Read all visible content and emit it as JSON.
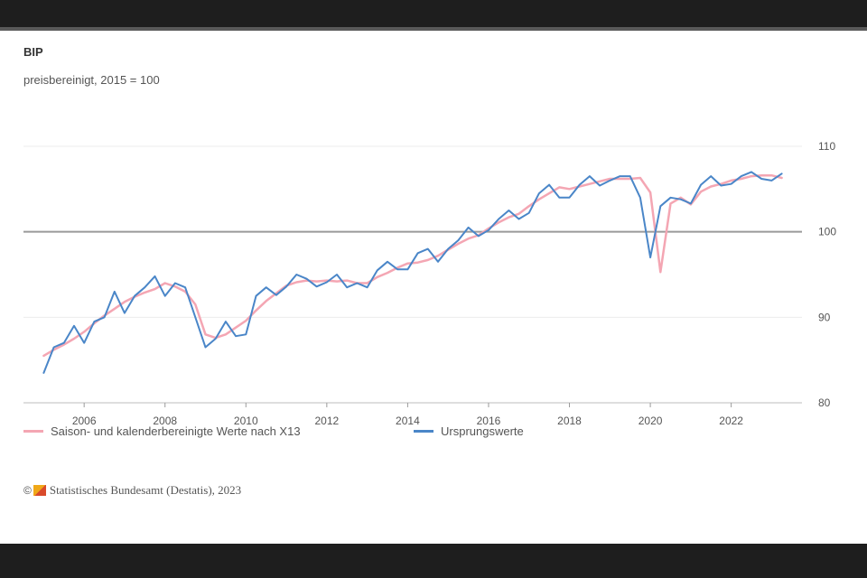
{
  "chart_data": {
    "type": "line",
    "title": "BIP",
    "subtitle": "preisbereinigt, 2015 = 100",
    "ylim": [
      80,
      110
    ],
    "yticks": [
      80,
      90,
      100,
      110
    ],
    "xlim": [
      2004.5,
      2023.75
    ],
    "xticks": [
      2006,
      2008,
      2010,
      2012,
      2014,
      2016,
      2018,
      2020,
      2022
    ],
    "grid": true,
    "reference_line": 100,
    "legend_position": "bottom-left",
    "series": [
      {
        "name": "Saison- und kalenderbereinigte Werte nach X13",
        "color": "#f4a6b3",
        "x": [
          2005.0,
          2005.25,
          2005.5,
          2005.75,
          2006.0,
          2006.25,
          2006.5,
          2006.75,
          2007.0,
          2007.25,
          2007.5,
          2007.75,
          2008.0,
          2008.25,
          2008.5,
          2008.75,
          2009.0,
          2009.25,
          2009.5,
          2009.75,
          2010.0,
          2010.25,
          2010.5,
          2010.75,
          2011.0,
          2011.25,
          2011.5,
          2011.75,
          2012.0,
          2012.25,
          2012.5,
          2012.75,
          2013.0,
          2013.25,
          2013.5,
          2013.75,
          2014.0,
          2014.25,
          2014.5,
          2014.75,
          2015.0,
          2015.25,
          2015.5,
          2015.75,
          2016.0,
          2016.25,
          2016.5,
          2016.75,
          2017.0,
          2017.25,
          2017.5,
          2017.75,
          2018.0,
          2018.25,
          2018.5,
          2018.75,
          2019.0,
          2019.25,
          2019.5,
          2019.75,
          2020.0,
          2020.25,
          2020.5,
          2020.75,
          2021.0,
          2021.25,
          2021.5,
          2021.75,
          2022.0,
          2022.25,
          2022.5,
          2022.75,
          2023.0,
          2023.25
        ],
        "y": [
          85.5,
          86.2,
          86.8,
          87.5,
          88.3,
          89.3,
          90.2,
          91.0,
          91.8,
          92.4,
          92.9,
          93.3,
          94.0,
          93.6,
          93.0,
          91.5,
          88.0,
          87.6,
          88.0,
          88.8,
          89.6,
          90.8,
          91.9,
          92.8,
          93.7,
          94.1,
          94.3,
          94.2,
          94.3,
          94.2,
          94.3,
          94.0,
          94.0,
          94.7,
          95.2,
          95.8,
          96.3,
          96.4,
          96.7,
          97.2,
          97.9,
          98.6,
          99.2,
          99.6,
          100.4,
          101.1,
          101.7,
          102.1,
          103.0,
          103.8,
          104.5,
          105.2,
          105.0,
          105.3,
          105.6,
          105.9,
          106.2,
          106.2,
          106.2,
          106.3,
          104.6,
          95.3,
          103.3,
          104.0,
          103.2,
          104.7,
          105.3,
          105.6,
          106.0,
          106.2,
          106.5,
          106.6,
          106.6,
          106.3
        ]
      },
      {
        "name": "Ursprungswerte",
        "color": "#4a86c8",
        "x": [
          2005.0,
          2005.25,
          2005.5,
          2005.75,
          2006.0,
          2006.25,
          2006.5,
          2006.75,
          2007.0,
          2007.25,
          2007.5,
          2007.75,
          2008.0,
          2008.25,
          2008.5,
          2008.75,
          2009.0,
          2009.25,
          2009.5,
          2009.75,
          2010.0,
          2010.25,
          2010.5,
          2010.75,
          2011.0,
          2011.25,
          2011.5,
          2011.75,
          2012.0,
          2012.25,
          2012.5,
          2012.75,
          2013.0,
          2013.25,
          2013.5,
          2013.75,
          2014.0,
          2014.25,
          2014.5,
          2014.75,
          2015.0,
          2015.25,
          2015.5,
          2015.75,
          2016.0,
          2016.25,
          2016.5,
          2016.75,
          2017.0,
          2017.25,
          2017.5,
          2017.75,
          2018.0,
          2018.25,
          2018.5,
          2018.75,
          2019.0,
          2019.25,
          2019.5,
          2019.75,
          2020.0,
          2020.25,
          2020.5,
          2020.75,
          2021.0,
          2021.25,
          2021.5,
          2021.75,
          2022.0,
          2022.25,
          2022.5,
          2022.75,
          2023.0,
          2023.25
        ],
        "y": [
          83.5,
          86.5,
          87.0,
          89.0,
          87.0,
          89.5,
          90.0,
          93.0,
          90.5,
          92.5,
          93.5,
          94.8,
          92.5,
          94.0,
          93.5,
          90.0,
          86.5,
          87.5,
          89.5,
          87.8,
          88.0,
          92.5,
          93.5,
          92.6,
          93.6,
          95.0,
          94.5,
          93.6,
          94.1,
          95.0,
          93.5,
          94.0,
          93.5,
          95.5,
          96.5,
          95.6,
          95.6,
          97.5,
          98.0,
          96.5,
          98.0,
          99.0,
          100.5,
          99.5,
          100.2,
          101.5,
          102.5,
          101.5,
          102.2,
          104.5,
          105.5,
          104.0,
          104.0,
          105.5,
          106.5,
          105.4,
          106.0,
          106.5,
          106.5,
          104.0,
          97.0,
          103.0,
          104.0,
          103.8,
          103.3,
          105.5,
          106.5,
          105.4,
          105.6,
          106.5,
          107.0,
          106.2,
          106.0,
          106.8
        ]
      }
    ]
  },
  "source": "Statistisches Bundesamt (Destatis), 2023"
}
